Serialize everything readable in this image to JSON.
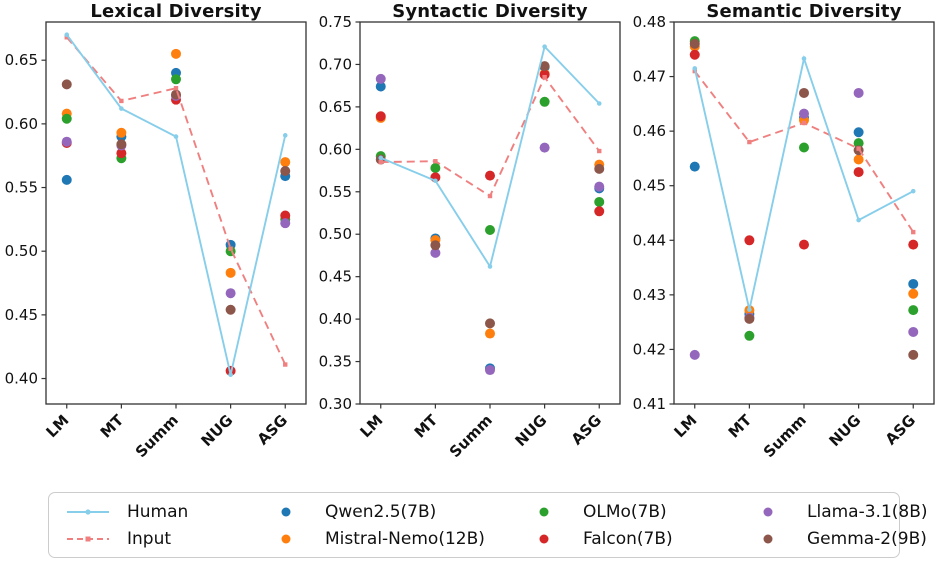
{
  "colors": {
    "human": "#87CEEB",
    "input": "#F08080",
    "qwen": "#1f77b4",
    "mistral": "#ff7f0e",
    "olmo": "#2ca02c",
    "falcon": "#d62728",
    "llama": "#9467bd",
    "gemma": "#8c564b",
    "axis": "#333333",
    "text": "#111111"
  },
  "legend": {
    "position": "bottom",
    "entries": [
      {
        "label": "Human",
        "type": "solid-line",
        "color": "human"
      },
      {
        "label": "Qwen2.5(7B)",
        "type": "dot",
        "color": "qwen"
      },
      {
        "label": "OLMo(7B)",
        "type": "dot",
        "color": "olmo"
      },
      {
        "label": "Llama-3.1(8B)",
        "type": "dot",
        "color": "llama"
      },
      {
        "label": "Input",
        "type": "dashed-line",
        "color": "input"
      },
      {
        "label": "Mistral-Nemo(12B)",
        "type": "dot",
        "color": "mistral"
      },
      {
        "label": "Falcon(7B)",
        "type": "dot",
        "color": "falcon"
      },
      {
        "label": "Gemma-2(9B)",
        "type": "dot",
        "color": "gemma"
      }
    ]
  },
  "chart_data": [
    {
      "type": "line+scatter",
      "title": "Lexical Diversity",
      "categories": [
        "LM",
        "MT",
        "Summ",
        "NUG",
        "ASG"
      ],
      "xlabel": "",
      "ylabel": "",
      "grid": false,
      "ylim": [
        0.38,
        0.68
      ],
      "yticks": [
        0.4,
        0.45,
        0.5,
        0.55,
        0.6,
        0.65
      ],
      "series": [
        {
          "name": "Qwen2.5(7B)",
          "style": "scatter",
          "color": "qwen",
          "values": [
            0.556,
            0.59,
            0.64,
            0.505,
            0.559
          ]
        },
        {
          "name": "Mistral-Nemo(12B)",
          "style": "scatter",
          "color": "mistral",
          "values": [
            0.608,
            0.593,
            0.655,
            0.483,
            0.57
          ]
        },
        {
          "name": "OLMo(7B)",
          "style": "scatter",
          "color": "olmo",
          "values": [
            0.604,
            0.573,
            0.635,
            0.5,
            0.525
          ]
        },
        {
          "name": "Falcon(7B)",
          "style": "scatter",
          "color": "falcon",
          "values": [
            0.585,
            0.577,
            0.619,
            0.406,
            0.528
          ]
        },
        {
          "name": "Llama-3.1(8B)",
          "style": "scatter",
          "color": "llama",
          "values": [
            0.586,
            0.583,
            0.622,
            0.467,
            0.522
          ]
        },
        {
          "name": "Gemma-2(9B)",
          "style": "scatter",
          "color": "gemma",
          "values": [
            0.631,
            0.584,
            0.623,
            0.454,
            0.563
          ]
        },
        {
          "name": "Input",
          "style": "dashed-line",
          "color": "input",
          "values": [
            0.668,
            0.618,
            0.628,
            0.502,
            0.411
          ]
        },
        {
          "name": "Human",
          "style": "solid-line",
          "color": "human",
          "values": [
            0.67,
            0.612,
            0.59,
            0.403,
            0.591
          ]
        }
      ]
    },
    {
      "type": "line+scatter",
      "title": "Syntactic Diversity",
      "categories": [
        "LM",
        "MT",
        "Summ",
        "NUG",
        "ASG"
      ],
      "xlabel": "",
      "ylabel": "",
      "grid": false,
      "ylim": [
        0.3,
        0.75
      ],
      "yticks": [
        0.3,
        0.35,
        0.4,
        0.45,
        0.5,
        0.55,
        0.6,
        0.65,
        0.7,
        0.75
      ],
      "series": [
        {
          "name": "Qwen2.5(7B)",
          "style": "scatter",
          "color": "qwen",
          "values": [
            0.674,
            0.495,
            0.342,
            0.697,
            0.554
          ]
        },
        {
          "name": "Mistral-Nemo(12B)",
          "style": "scatter",
          "color": "mistral",
          "values": [
            0.637,
            0.493,
            0.383,
            0.689,
            0.582
          ]
        },
        {
          "name": "OLMo(7B)",
          "style": "scatter",
          "color": "olmo",
          "values": [
            0.592,
            0.578,
            0.505,
            0.656,
            0.538
          ]
        },
        {
          "name": "Falcon(7B)",
          "style": "scatter",
          "color": "falcon",
          "values": [
            0.639,
            0.567,
            0.569,
            0.688,
            0.527
          ]
        },
        {
          "name": "Llama-3.1(8B)",
          "style": "scatter",
          "color": "llama",
          "values": [
            0.683,
            0.478,
            0.34,
            0.602,
            0.556
          ]
        },
        {
          "name": "Gemma-2(9B)",
          "style": "scatter",
          "color": "gemma",
          "values": [
            0.588,
            0.487,
            0.395,
            0.698,
            0.577
          ]
        },
        {
          "name": "Input",
          "style": "dashed-line",
          "color": "input",
          "values": [
            0.585,
            0.586,
            0.545,
            0.685,
            0.598
          ]
        },
        {
          "name": "Human",
          "style": "solid-line",
          "color": "human",
          "values": [
            0.59,
            0.563,
            0.462,
            0.721,
            0.654
          ]
        }
      ]
    },
    {
      "type": "line+scatter",
      "title": "Semantic Diversity",
      "categories": [
        "LM",
        "MT",
        "Summ",
        "NUG",
        "ASG"
      ],
      "xlabel": "",
      "ylabel": "",
      "grid": false,
      "ylim": [
        0.41,
        0.48
      ],
      "yticks": [
        0.41,
        0.42,
        0.43,
        0.44,
        0.45,
        0.46,
        0.47,
        0.48
      ],
      "series": [
        {
          "name": "Qwen2.5(7B)",
          "style": "scatter",
          "color": "qwen",
          "values": [
            0.4535,
            0.4265,
            0.4625,
            0.4598,
            0.432
          ]
        },
        {
          "name": "Mistral-Nemo(12B)",
          "style": "scatter",
          "color": "mistral",
          "values": [
            0.4755,
            0.4272,
            0.462,
            0.4548,
            0.4302
          ]
        },
        {
          "name": "OLMo(7B)",
          "style": "scatter",
          "color": "olmo",
          "values": [
            0.4765,
            0.4225,
            0.457,
            0.4578,
            0.4272
          ]
        },
        {
          "name": "Falcon(7B)",
          "style": "scatter",
          "color": "falcon",
          "values": [
            0.474,
            0.44,
            0.4392,
            0.4525,
            0.4392
          ]
        },
        {
          "name": "Llama-3.1(8B)",
          "style": "scatter",
          "color": "llama",
          "values": [
            0.419,
            0.4258,
            0.4632,
            0.467,
            0.4232
          ]
        },
        {
          "name": "Gemma-2(9B)",
          "style": "scatter",
          "color": "gemma",
          "values": [
            0.476,
            0.4256,
            0.467,
            0.4565,
            0.419
          ]
        },
        {
          "name": "Input",
          "style": "dashed-line",
          "color": "input",
          "values": [
            0.471,
            0.458,
            0.4615,
            0.4568,
            0.4415
          ]
        },
        {
          "name": "Human",
          "style": "solid-line",
          "color": "human",
          "values": [
            0.4715,
            0.4273,
            0.4733,
            0.4437,
            0.449
          ]
        }
      ]
    }
  ]
}
